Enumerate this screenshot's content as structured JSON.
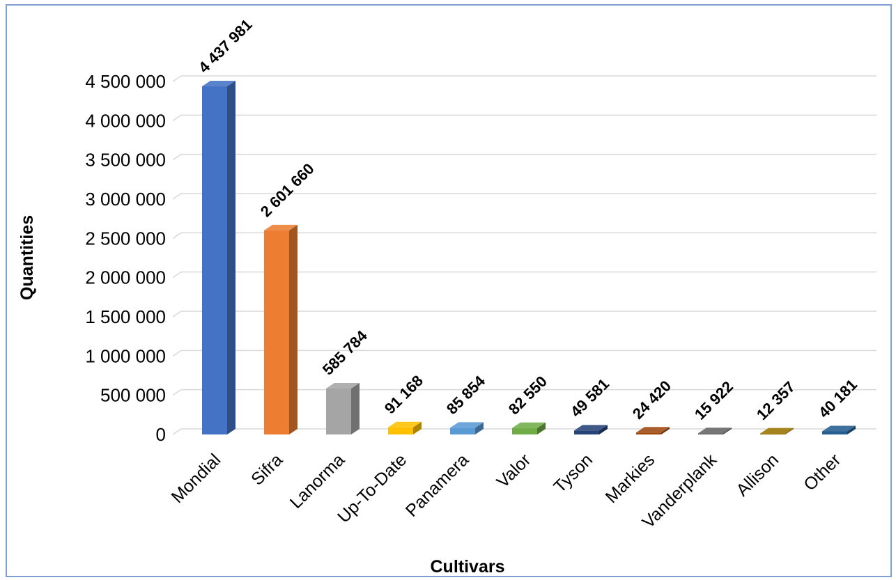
{
  "chart_data": {
    "type": "bar",
    "title": "",
    "xlabel": "Cultivars",
    "ylabel": "Quantities",
    "ylim": [
      0,
      4500000
    ],
    "y_ticks": [
      0,
      500000,
      1000000,
      1500000,
      2000000,
      2500000,
      3000000,
      3500000,
      4000000,
      4500000
    ],
    "y_tick_labels": [
      "0",
      "500 000",
      "1 000 000",
      "1 500 000",
      "2 000 000",
      "2 500 000",
      "3 000 000",
      "3 500 000",
      "4 000 000",
      "4 500 000"
    ],
    "grid": true,
    "legend": "none",
    "categories": [
      "Mondial",
      "Sifra",
      "Lanorma",
      "Up-To-Date",
      "Panamera",
      "Valor",
      "Tyson",
      "Markies",
      "Vanderplank",
      "Allison",
      "Other"
    ],
    "values": [
      4437981,
      2601660,
      585784,
      91168,
      85854,
      82550,
      49581,
      24420,
      15922,
      12357,
      40181
    ],
    "value_labels": [
      "4 437 981",
      "2 601 660",
      "585 784",
      "91 168",
      "85 854",
      "82 550",
      "49 581",
      "24 420",
      "15 922",
      "12 357",
      "40 181"
    ],
    "colors": [
      "#4472c4",
      "#ed7d31",
      "#a5a5a5",
      "#ffc000",
      "#5b9bd5",
      "#70ad47",
      "#264478",
      "#9e480e",
      "#636363",
      "#997300",
      "#255e91"
    ]
  }
}
